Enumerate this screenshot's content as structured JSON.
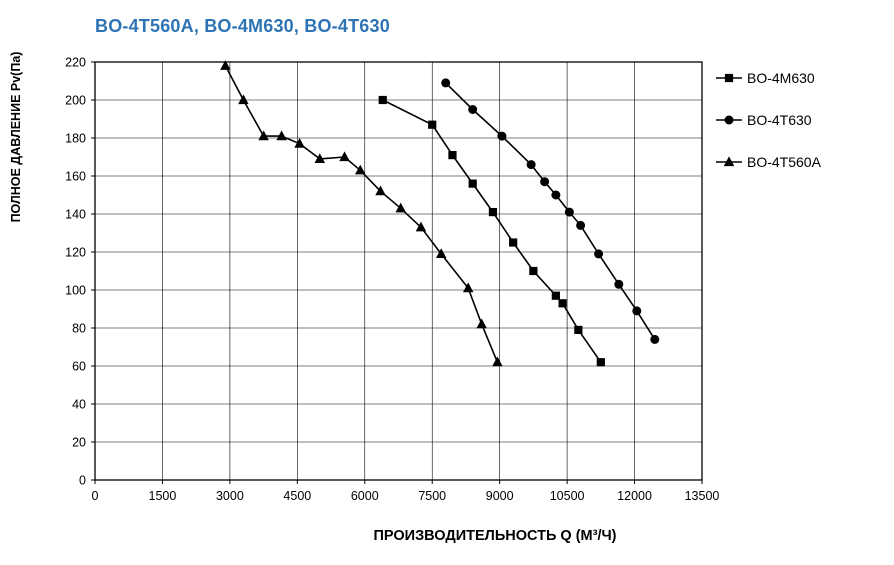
{
  "title": "BO-4T560A, BO-4M630, BO-4T630",
  "colors": {
    "title": "#2E74B5",
    "grid": "#000000",
    "border": "#000000",
    "series": "#000000",
    "background": "#FFFFFF"
  },
  "chart_data": {
    "type": "line",
    "title": "BO-4T560A, BO-4M630, BO-4T630",
    "xlabel": "ПРОИЗВОДИТЕЛЬНОСТЬ   Q  (М³/Ч)",
    "ylabel": "ПОЛНОЕ ДАВЛЕНИЕ  Pv(Па)",
    "xlim": [
      0,
      13500
    ],
    "ylim": [
      0,
      220
    ],
    "xticks": [
      0,
      1500,
      3000,
      4500,
      6000,
      7500,
      9000,
      10500,
      12000,
      13500
    ],
    "yticks": [
      0,
      20,
      40,
      60,
      80,
      100,
      120,
      140,
      160,
      180,
      200,
      220
    ],
    "grid": true,
    "legend_position": "right",
    "series": [
      {
        "name": "BO-4M630",
        "marker": "square",
        "points": [
          [
            6400,
            200
          ],
          [
            7500,
            187
          ],
          [
            7950,
            171
          ],
          [
            8400,
            156
          ],
          [
            8850,
            141
          ],
          [
            9300,
            125
          ],
          [
            9750,
            110
          ],
          [
            10250,
            97
          ],
          [
            10400,
            93
          ],
          [
            10750,
            79
          ],
          [
            11250,
            62
          ]
        ]
      },
      {
        "name": "BO-4T630",
        "marker": "circle",
        "points": [
          [
            7800,
            209
          ],
          [
            8400,
            195
          ],
          [
            9050,
            181
          ],
          [
            9700,
            166
          ],
          [
            10000,
            157
          ],
          [
            10250,
            150
          ],
          [
            10550,
            141
          ],
          [
            10800,
            134
          ],
          [
            11200,
            119
          ],
          [
            11650,
            103
          ],
          [
            12050,
            89
          ],
          [
            12450,
            74
          ]
        ]
      },
      {
        "name": "BO-4T560A",
        "marker": "triangle",
        "points": [
          [
            2900,
            218
          ],
          [
            3300,
            200
          ],
          [
            3750,
            181
          ],
          [
            4150,
            181
          ],
          [
            4550,
            177
          ],
          [
            5000,
            169
          ],
          [
            5550,
            170
          ],
          [
            5900,
            163
          ],
          [
            6350,
            152
          ],
          [
            6800,
            143
          ],
          [
            7250,
            133
          ],
          [
            7700,
            119
          ],
          [
            8300,
            101
          ],
          [
            8600,
            82
          ],
          [
            8950,
            62
          ]
        ]
      }
    ]
  }
}
